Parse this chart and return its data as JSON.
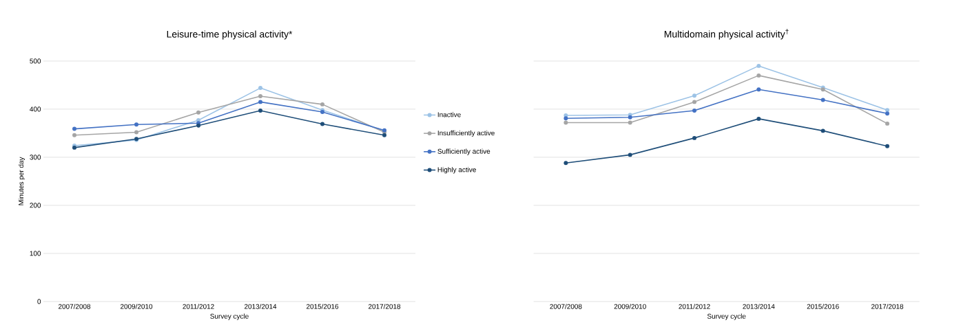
{
  "chart_data": [
    {
      "type": "line",
      "title": "Leisure-time physical activity*",
      "xlabel": "Survey cycle",
      "ylabel": "Minutes per day",
      "categories": [
        "2007/2008",
        "2009/2010",
        "2011/2012",
        "2013/2014",
        "2015/2016",
        "2017/2018"
      ],
      "series": [
        {
          "name": "Inactive",
          "color": "#9dc3e6",
          "values": [
            324,
            336,
            377,
            444,
            398,
            355
          ]
        },
        {
          "name": "Insufficiently active",
          "color": "#a5a5a5",
          "values": [
            346,
            352,
            393,
            427,
            410,
            352
          ]
        },
        {
          "name": "Sufficiently active",
          "color": "#4472c4",
          "values": [
            359,
            368,
            371,
            415,
            394,
            356
          ]
        },
        {
          "name": "Highly active",
          "color": "#1f4e79",
          "values": [
            320,
            338,
            366,
            397,
            369,
            346
          ]
        }
      ],
      "ylim": [
        0,
        500
      ],
      "yticks": [
        0,
        100,
        200,
        300,
        400,
        500
      ],
      "grid": "y",
      "legend": "right",
      "marker": "circle",
      "line_style": "solid"
    },
    {
      "type": "line",
      "title": "Multidomain physical activity$^{†}$",
      "xlabel": "Survey cycle",
      "categories": [
        "2007/2008",
        "2009/2010",
        "2011/2012",
        "2013/2014",
        "2015/2016",
        "2017/2018"
      ],
      "series": [
        {
          "color": "#9dc3e6",
          "values": [
            387,
            388,
            428,
            490,
            445,
            398
          ]
        },
        {
          "color": "#a5a5a5",
          "values": [
            372,
            372,
            415,
            470,
            441,
            370
          ]
        },
        {
          "color": "#4472c4",
          "values": [
            381,
            383,
            397,
            441,
            419,
            391
          ]
        },
        {
          "color": "#1f4e79",
          "values": [
            288,
            305,
            340,
            380,
            355,
            323
          ]
        }
      ],
      "ylim": [
        0,
        500
      ],
      "yticks": [
        0,
        100,
        200,
        300,
        400,
        500
      ],
      "grid": "y",
      "tick_labels": "x",
      "marker": "circle",
      "line_style": "solid"
    }
  ]
}
